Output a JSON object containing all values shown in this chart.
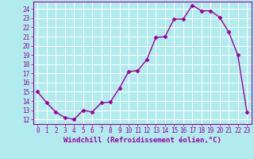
{
  "x": [
    0,
    1,
    2,
    3,
    4,
    5,
    6,
    7,
    8,
    9,
    10,
    11,
    12,
    13,
    14,
    15,
    16,
    17,
    18,
    19,
    20,
    21,
    22,
    23
  ],
  "y": [
    15.0,
    13.8,
    12.8,
    12.2,
    12.0,
    13.0,
    12.8,
    13.8,
    13.9,
    15.4,
    17.2,
    17.3,
    18.5,
    20.9,
    21.0,
    22.9,
    22.9,
    24.4,
    23.8,
    23.8,
    23.1,
    21.5,
    19.0,
    12.8
  ],
  "line_color": "#990099",
  "marker": "D",
  "markersize": 2.5,
  "linewidth": 1.0,
  "xlabel": "Windchill (Refroidissement éolien,°C)",
  "xlabel_fontsize": 6.5,
  "background_color": "#b2ebee",
  "grid_color": "#aad8dc",
  "tick_color": "#990099",
  "label_color": "#990099",
  "ylim_min": 11.5,
  "ylim_max": 24.8,
  "xlim_min": -0.5,
  "xlim_max": 23.5,
  "yticks": [
    12,
    13,
    14,
    15,
    16,
    17,
    18,
    19,
    20,
    21,
    22,
    23,
    24
  ],
  "xticks": [
    0,
    1,
    2,
    3,
    4,
    5,
    6,
    7,
    8,
    9,
    10,
    11,
    12,
    13,
    14,
    15,
    16,
    17,
    18,
    19,
    20,
    21,
    22,
    23
  ],
  "tick_fontsize": 5.5
}
